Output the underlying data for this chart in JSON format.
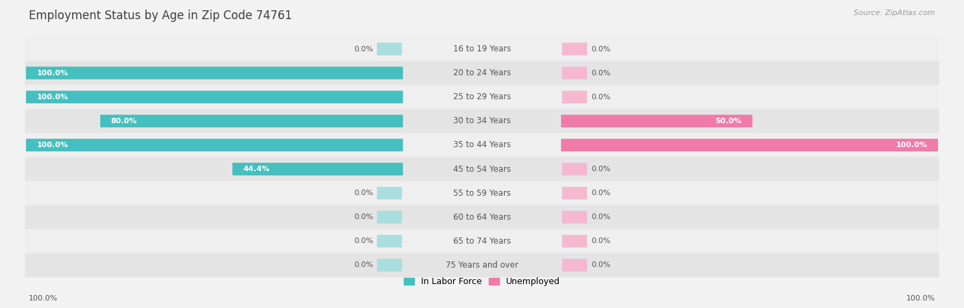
{
  "title": "Employment Status by Age in Zip Code 74761",
  "source": "Source: ZipAtlas.com",
  "categories": [
    "16 to 19 Years",
    "20 to 24 Years",
    "25 to 29 Years",
    "30 to 34 Years",
    "35 to 44 Years",
    "45 to 54 Years",
    "55 to 59 Years",
    "60 to 64 Years",
    "65 to 74 Years",
    "75 Years and over"
  ],
  "labor_force": [
    0.0,
    100.0,
    100.0,
    80.0,
    100.0,
    44.4,
    0.0,
    0.0,
    0.0,
    0.0
  ],
  "unemployed": [
    0.0,
    0.0,
    0.0,
    50.0,
    100.0,
    0.0,
    0.0,
    0.0,
    0.0,
    0.0
  ],
  "labor_force_color": "#45bfbf",
  "unemployed_color": "#f07aa8",
  "labor_force_light": "#a8dede",
  "unemployed_light": "#f5b8ce",
  "bg_odd": "#efefef",
  "bg_even": "#e4e4e4",
  "title_color": "#404040",
  "text_color": "#555555",
  "white": "#ffffff",
  "title_fontsize": 12,
  "label_fontsize": 8.5,
  "value_fontsize": 8,
  "legend_fontsize": 9,
  "source_fontsize": 8
}
